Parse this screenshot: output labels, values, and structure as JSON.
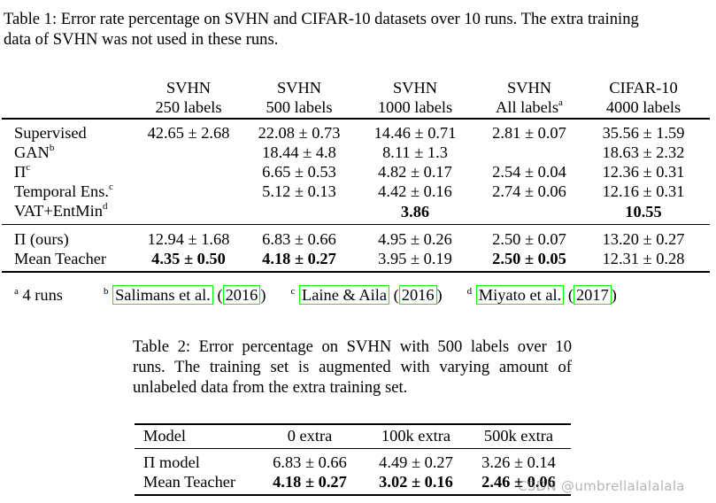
{
  "table1": {
    "caption_lines": [
      "Table 1: Error rate percentage on SVHN and CIFAR-10 datasets over 10 runs. The extra training",
      "data of SVHN was not used in these runs."
    ],
    "headers": [
      {
        "dataset": "SVHN",
        "labels": "250 labels",
        "sup": ""
      },
      {
        "dataset": "SVHN",
        "labels": "500 labels",
        "sup": ""
      },
      {
        "dataset": "SVHN",
        "labels": "1000 labels",
        "sup": ""
      },
      {
        "dataset": "SVHN",
        "labels": "All labels",
        "sup": "a"
      },
      {
        "dataset": "CIFAR-10",
        "labels": "4000 labels",
        "sup": ""
      }
    ],
    "group1": [
      {
        "method": "Supervised",
        "sup": "",
        "cells": [
          "42.65 ± 2.68",
          "22.08 ± 0.73",
          "14.46 ± 0.71",
          "2.81 ± 0.07",
          "35.56 ± 1.59"
        ]
      },
      {
        "method": "GAN",
        "sup": "b",
        "cells": [
          "",
          "18.44 ± 4.8",
          "8.11 ± 1.3",
          "",
          "18.63 ± 2.32"
        ]
      },
      {
        "method": "Π",
        "sup": "c",
        "cells": [
          "",
          "6.65 ± 0.53",
          "4.82 ± 0.17",
          "2.54 ± 0.04",
          "12.36 ± 0.31"
        ]
      },
      {
        "method": "Temporal Ens.",
        "sup": "c",
        "cells": [
          "",
          "5.12 ± 0.13",
          "4.42 ± 0.16",
          "2.74 ± 0.06",
          "12.16 ± 0.31"
        ]
      },
      {
        "method": "VAT+EntMin",
        "sup": "d",
        "cells": [
          "",
          "",
          "3.86",
          "",
          "10.55"
        ]
      }
    ],
    "group2": [
      {
        "method": "Π (ours)",
        "sup": "",
        "cells": [
          "12.94 ± 1.68",
          "6.83 ± 0.66",
          "4.95 ± 0.26",
          "2.50 ± 0.07",
          "13.20 ± 0.27"
        ]
      },
      {
        "method": "Mean Teacher",
        "sup": "",
        "cells": [
          "4.35 ± 0.50",
          "4.18 ± 0.27",
          "3.95 ± 0.19",
          "2.50 ± 0.05",
          "12.31 ± 0.28"
        ]
      }
    ],
    "footnotes": {
      "a_mark": "a",
      "a_text": "4 runs",
      "b_mark": "b",
      "b_author": "Salimans et al.",
      "b_year": "2016",
      "c_mark": "c",
      "c_author": "Laine & Aila",
      "c_year": "2016",
      "d_mark": "d",
      "d_author": "Miyato et al.",
      "d_year": "2017",
      "open_paren": "(",
      "close_paren": ")"
    },
    "link_box_color": "#00ff00"
  },
  "table2": {
    "caption_lines": [
      "Table 2: Error percentage on SVHN with 500 labels over 10",
      "runs. The training set is augmented with varying amount of",
      "unlabeled data from the extra training set."
    ],
    "headers": [
      "Model",
      "0 extra",
      "100k extra",
      "500k extra"
    ],
    "rows": [
      {
        "model": "Π model",
        "cells": [
          "6.83 ± 0.66",
          "4.49 ± 0.27",
          "3.26 ± 0.14"
        ]
      },
      {
        "model": "Mean Teacher",
        "cells": [
          "4.18 ± 0.27",
          "3.02 ± 0.16",
          "2.46 ± 0.06"
        ]
      }
    ]
  },
  "watermark": "CSDN @umbrellalalalala"
}
